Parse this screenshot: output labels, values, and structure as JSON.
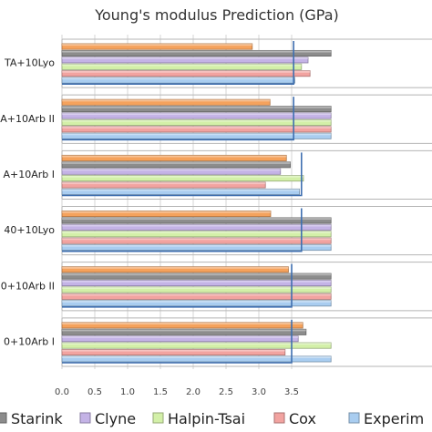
{
  "chart_data": {
    "type": "bar",
    "orientation": "horizontal",
    "title": "Young's modulus Prediction (GPa)",
    "xlim": [
      0,
      4.0
    ],
    "xticks": [
      "0.0",
      "0.5",
      "1.0",
      "1.5",
      "2.0",
      "2.5",
      "3.0",
      "3.5"
    ],
    "grid": "vertical",
    "legend_position": "bottom",
    "categories": [
      "TA+10Lyo",
      "A+10Arb II",
      "A+10Arb I",
      "40+10Lyo",
      "0+10Arb II",
      "0+10Arb I"
    ],
    "series": [
      {
        "name": "Experim",
        "color": "#a9cdf0",
        "values": [
          3.55,
          4.1,
          3.62,
          4.1,
          4.1,
          4.1
        ]
      },
      {
        "name": "Cox",
        "color": "#f2a3a0",
        "values": [
          3.78,
          4.1,
          3.1,
          4.1,
          4.1,
          3.4
        ]
      },
      {
        "name": "Halpin-Tsai",
        "color": "#d3f0a8",
        "values": [
          3.65,
          4.1,
          3.68,
          4.1,
          4.1,
          4.1
        ]
      },
      {
        "name": "Clyne",
        "color": "#c4b3e6",
        "values": [
          3.75,
          4.1,
          3.33,
          4.1,
          4.1,
          3.6
        ]
      },
      {
        "name": "Starink",
        "color": "#8c8c8c",
        "values": [
          4.1,
          4.1,
          3.48,
          4.1,
          4.1,
          3.72
        ]
      },
      {
        "name": "",
        "color": "#f5a25c",
        "values": [
          2.9,
          3.17,
          3.42,
          3.18,
          3.45,
          3.67
        ]
      }
    ],
    "experimental_marker_values": [
      3.53,
      3.53,
      3.65,
      3.65,
      3.5,
      3.5
    ]
  }
}
